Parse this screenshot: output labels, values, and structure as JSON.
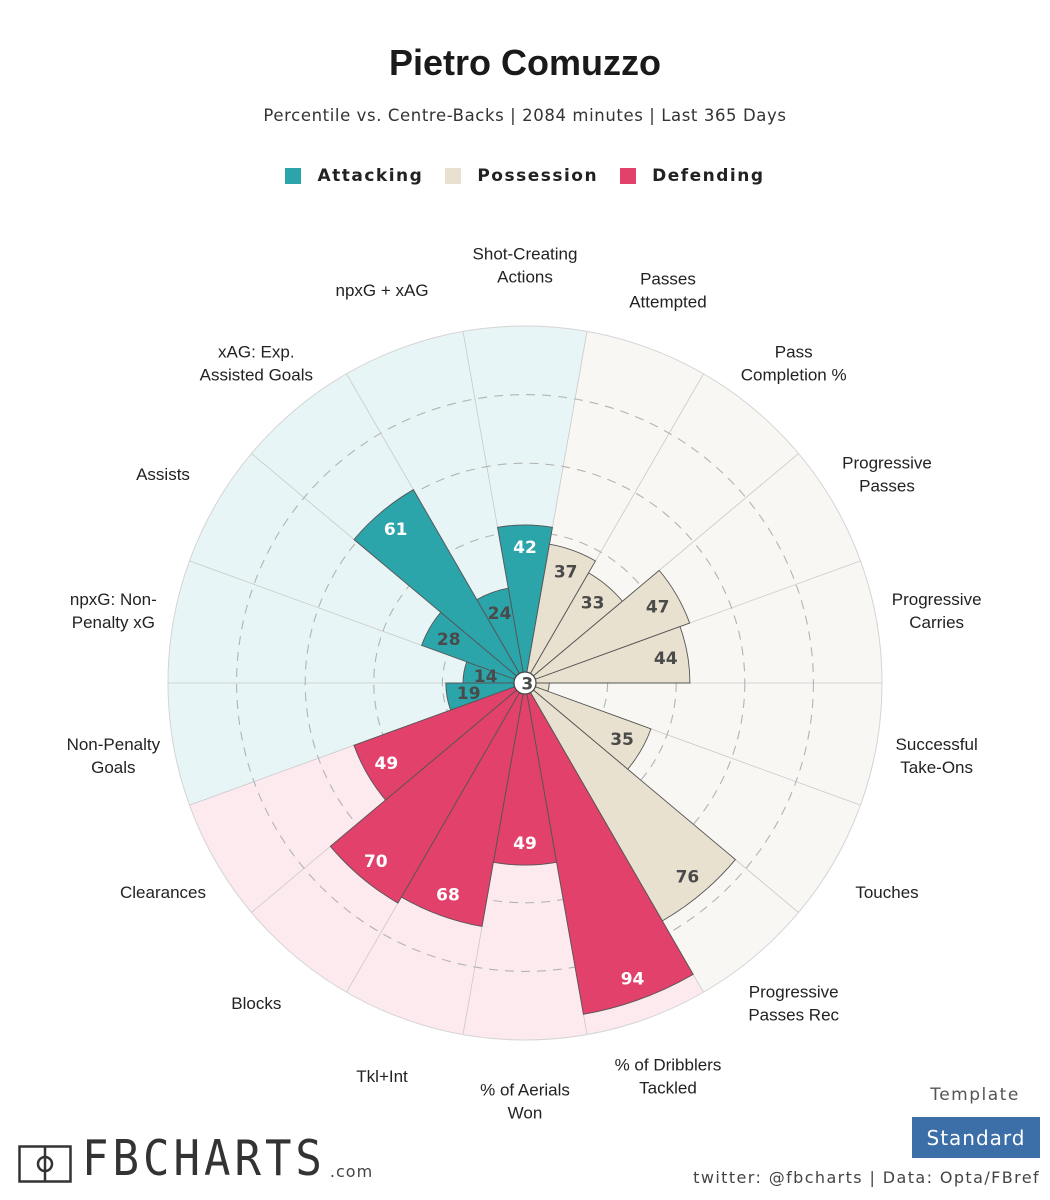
{
  "header": {
    "title": "Pietro Comuzzo",
    "subtitle": "Percentile vs. Centre-Backs | 2084 minutes | Last 365 Days"
  },
  "colors": {
    "Attacking": "#2ba4aa",
    "Possession": "#e9e1cf",
    "Defending": "#e1416a",
    "Attacking_bg": "#e8f5f6",
    "Possession_bg": "#f8f7f4",
    "Defending_bg": "#fdeaef"
  },
  "chart_data": {
    "type": "polar-bar",
    "rmax": 100,
    "rings": [
      20,
      40,
      60,
      80,
      100
    ],
    "legend": [
      "Attacking",
      "Possession",
      "Defending"
    ],
    "categories": [
      {
        "label": [
          "Shot-Creating",
          "Actions"
        ],
        "value": 42,
        "group": "Attacking"
      },
      {
        "label": [
          "Passes",
          "Attempted"
        ],
        "value": 37,
        "group": "Possession"
      },
      {
        "label": [
          "Pass",
          "Completion %"
        ],
        "value": 33,
        "group": "Possession"
      },
      {
        "label": [
          "Progressive",
          "Passes"
        ],
        "value": 47,
        "group": "Possession"
      },
      {
        "label": [
          "Progressive",
          "Carries"
        ],
        "value": 44,
        "group": "Possession"
      },
      {
        "label": [
          "Successful",
          "Take-Ons"
        ],
        "value": 3,
        "group": "Possession"
      },
      {
        "label": [
          "Touches"
        ],
        "value": 35,
        "group": "Possession"
      },
      {
        "label": [
          "Progressive",
          "Passes Rec"
        ],
        "value": 76,
        "group": "Possession"
      },
      {
        "label": [
          "% of Dribblers",
          "Tackled"
        ],
        "value": 94,
        "group": "Defending"
      },
      {
        "label": [
          "% of Aerials",
          "Won"
        ],
        "value": 49,
        "group": "Defending"
      },
      {
        "label": [
          "Tkl+Int"
        ],
        "value": 68,
        "group": "Defending"
      },
      {
        "label": [
          "Blocks"
        ],
        "value": 70,
        "group": "Defending"
      },
      {
        "label": [
          "Clearances"
        ],
        "value": 49,
        "group": "Defending"
      },
      {
        "label": [
          "Non-Penalty",
          "Goals"
        ],
        "value": 19,
        "group": "Attacking"
      },
      {
        "label": [
          "npxG: Non-",
          "Penalty xG"
        ],
        "value": 14,
        "group": "Attacking"
      },
      {
        "label": [
          "Assists"
        ],
        "value": 28,
        "group": "Attacking"
      },
      {
        "label": [
          "xAG: Exp.",
          "Assisted Goals"
        ],
        "value": 61,
        "group": "Attacking"
      },
      {
        "label": [
          "npxG + xAG"
        ],
        "value": 24,
        "group": "Attacking"
      }
    ]
  },
  "footer": {
    "template_label": "Template",
    "template_value": "Standard",
    "credit": "twitter: @fbcharts | Data: Opta/FBref",
    "logo_text": "FBCHARTS",
    "logo_suffix": ".com"
  }
}
